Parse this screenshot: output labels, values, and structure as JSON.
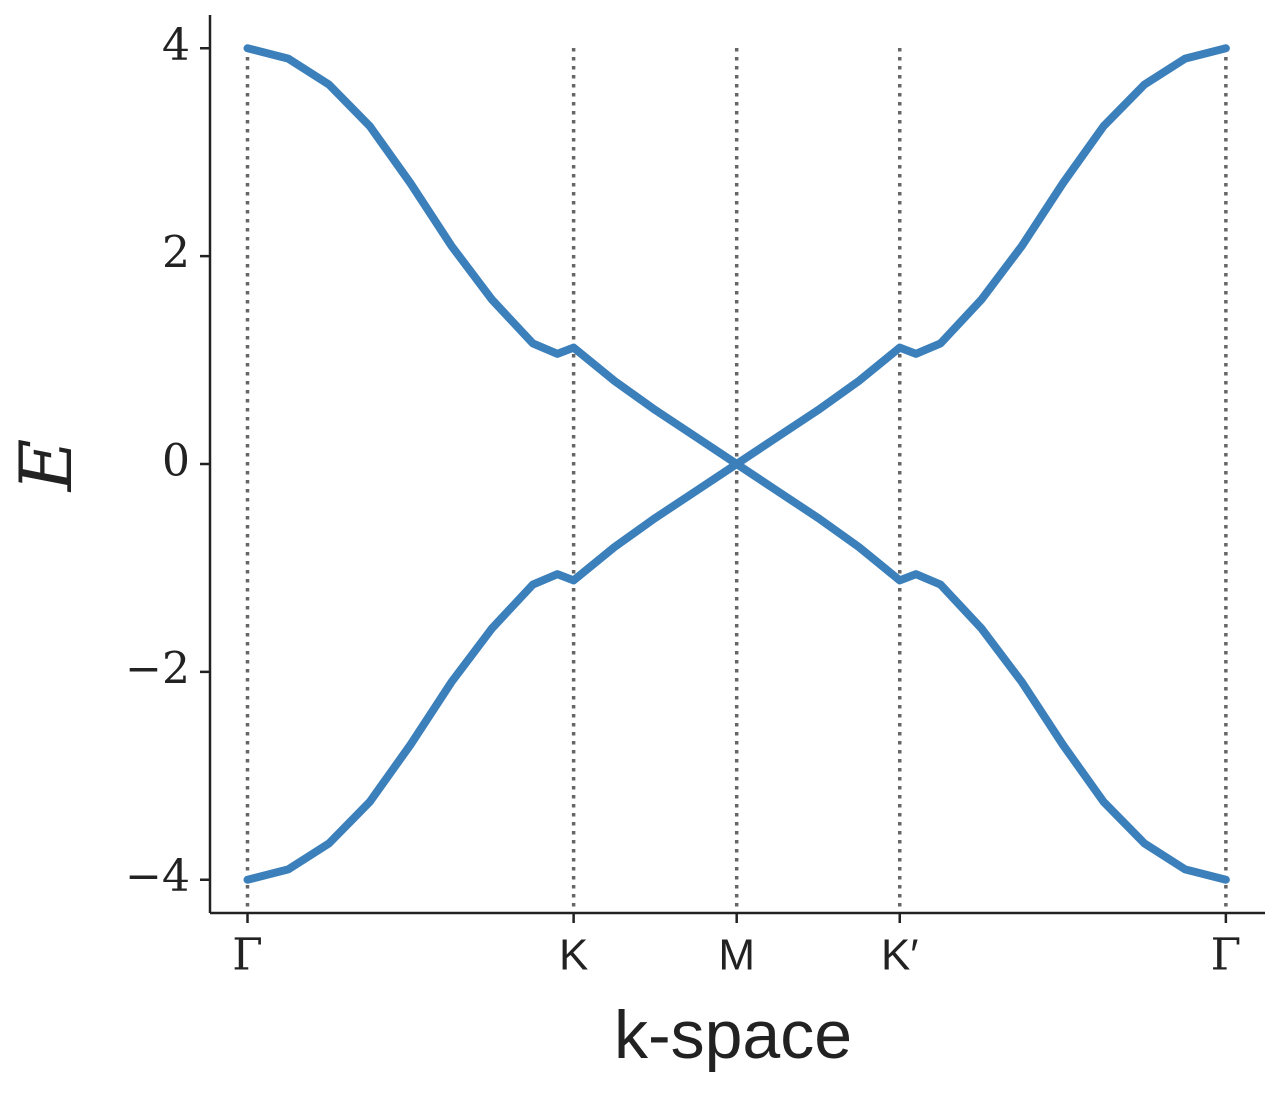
{
  "chart_data": {
    "type": "line",
    "xlabel": "k-space",
    "ylabel": "E",
    "x": [
      0,
      0.25,
      0.5,
      0.75,
      1,
      1.25,
      1.5,
      1.75,
      1.9,
      2,
      2.25,
      2.5,
      2.75,
      3,
      3.25,
      3.5,
      3.75,
      4,
      4.1,
      4.25,
      4.5,
      4.75,
      5,
      5.25,
      5.5,
      5.75,
      6
    ],
    "series": [
      {
        "color": "#3b7fbb",
        "values": [
          4,
          3.9,
          3.65,
          3.25,
          2.7,
          2.1,
          1.58,
          1.16,
          1.06,
          1.12,
          0.8,
          0.52,
          0.26,
          0,
          0.26,
          0.52,
          0.8,
          1.12,
          1.06,
          1.16,
          1.58,
          2.1,
          2.7,
          3.25,
          3.65,
          3.9,
          4
        ]
      },
      {
        "color": "#3b7fbb",
        "values": [
          -4,
          -3.9,
          -3.65,
          -3.25,
          -2.7,
          -2.1,
          -1.58,
          -1.16,
          -1.06,
          -1.12,
          -0.8,
          -0.52,
          -0.26,
          0,
          -0.26,
          -0.52,
          -0.8,
          -1.12,
          -1.06,
          -1.16,
          -1.58,
          -2.1,
          -2.7,
          -3.25,
          -3.65,
          -3.9,
          -4
        ]
      }
    ],
    "xlim": [
      -0.23,
      6.24
    ],
    "ylim": [
      -4.32,
      4.32
    ],
    "xticks": [
      {
        "value": 0,
        "label": "Γ"
      },
      {
        "value": 2,
        "label": "K"
      },
      {
        "value": 3,
        "label": "M"
      },
      {
        "value": 4,
        "label": "K′"
      },
      {
        "value": 6,
        "label": "Γ"
      }
    ],
    "yticks": [
      4,
      2,
      0,
      {
        "value": -2,
        "label": "−2"
      },
      {
        "value": -4,
        "label": "−4"
      }
    ],
    "grid": "x-dotted"
  }
}
